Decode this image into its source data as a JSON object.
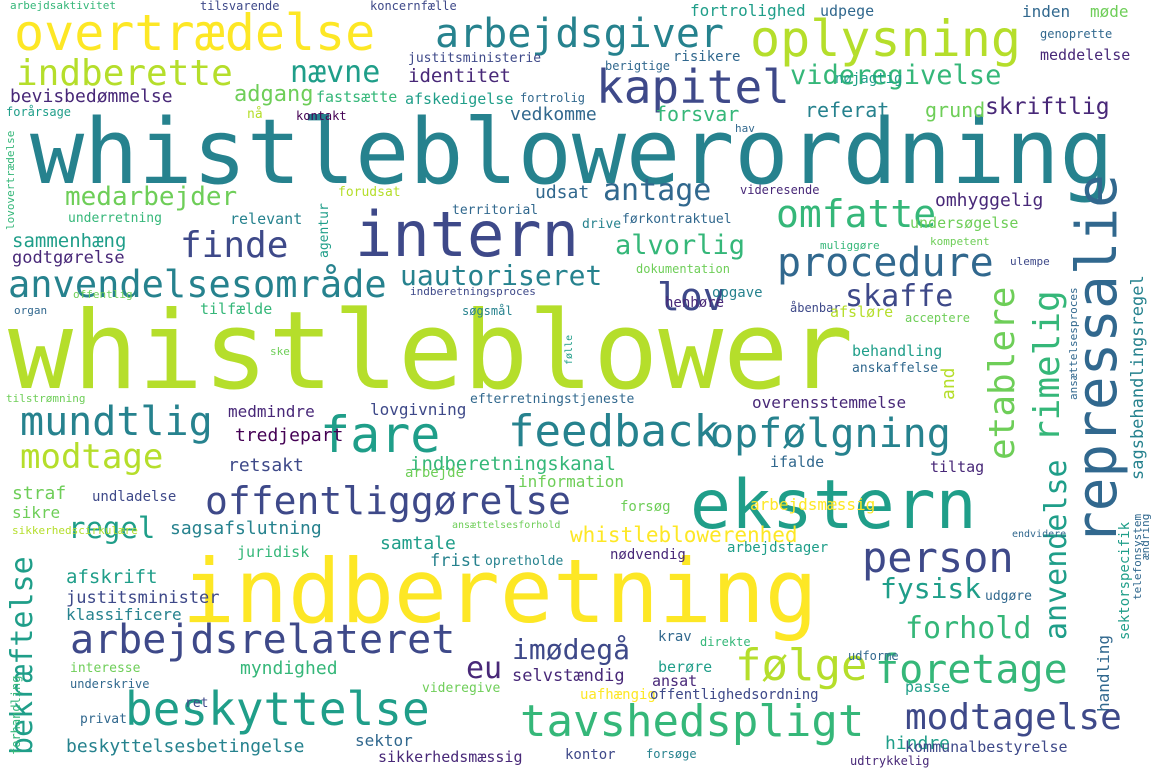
{
  "cloud": {
    "words": {
      "whistleblowerordning": "whistleblowerordning",
      "whistleblower": "whistleblower",
      "indberetning": "indberetning",
      "ekstern": "ekstern",
      "repressalie": "repressalie",
      "intern": "intern",
      "overtraedelse": "overtrædelse",
      "oplysning": "oplysning",
      "arbejdsgiver": "arbejdsgiver",
      "kapitel": "kapitel",
      "indberette": "indberette",
      "naevne": "nævne",
      "videregivelse": "videregivelse",
      "identitet": "identitet",
      "bevisbedommelse": "bevisbedømmelse",
      "adgang": "adgang",
      "fastsaette": "fastsætte",
      "afskedigelse": "afskedigelse",
      "fortrolig": "fortrolig",
      "referat": "referat",
      "grund": "grund",
      "skriftlig": "skriftlig",
      "kontakt": "kontakt",
      "vedkomme": "vedkomme",
      "forsvar": "forsvar",
      "medarbejder": "medarbejder",
      "antage": "antage",
      "omfatte": "omfatte",
      "udsat": "udsat",
      "omhyggelig": "omhyggelig",
      "finde": "finde",
      "alvorlig": "alvorlig",
      "procedure": "procedure",
      "anvendelsesomraade": "anvendelsesområde",
      "uautoriseret": "uautoriseret",
      "lov": "lov",
      "skaffe": "skaffe",
      "etablere": "etablere",
      "rimelig": "rimelig",
      "mundtlig": "mundtlig",
      "fare": "fare",
      "feedback": "feedback",
      "opfolgning": "opfølgning",
      "modtage": "modtage",
      "offentliggorelse": "offentliggørelse",
      "regel": "regel",
      "person": "person",
      "fysisk": "fysisk",
      "anvendelse": "anvendelse",
      "arbejdsrelateret": "arbejdsrelateret",
      "imodegaa": "imødegå",
      "eu": "eu",
      "folge": "følge",
      "foretage": "foretage",
      "forhold": "forhold",
      "beskyttelse": "beskyttelse",
      "tavshedspligt": "tavshedspligt",
      "modtagelse": "modtagelse",
      "bekraeftelse": "bekræftelse",
      "sagsbehandlingsregel": "sagsbehandlingsregel",
      "sammenhaeng": "sammenhæng",
      "godtgorelse": "godtgørelse",
      "medmindre": "medmindre",
      "tredjepart": "tredjepart",
      "retsakt": "retsakt",
      "lovgivning": "lovgivning",
      "indberetningskanal": "indberetningskanal",
      "overensstemmelse": "overensstemmelse",
      "tiltag": "tiltag",
      "ifalde": "ifalde",
      "information": "information",
      "straf": "straf",
      "sikre": "sikre",
      "undladelse": "undladelse",
      "sagsafslutning": "sagsafslutning",
      "samtale": "samtale",
      "whistleblowerenhed": "whistleblowerenhed",
      "arbejdsmaessig": "arbejdsmæssig",
      "arbejdstager": "arbejdstager",
      "juridisk": "juridisk",
      "frist": "frist",
      "opretholde": "opretholde",
      "noedvendig": "nødvendig",
      "afskrift": "afskrift",
      "justitsminister": "justitsminister",
      "klassificere": "klassificere",
      "myndighed": "myndighed",
      "selvstaendig": "selvstændig",
      "ansat": "ansat",
      "uafhaengig": "uafhængig",
      "offentlighedsordning": "offentlighedsordning",
      "beskyttelsesbetingelse": "beskyttelsesbetingelse",
      "sektor": "sektor",
      "sikkerhedsmaessig": "sikkerhedsmæssig",
      "kontor": "kontor",
      "hindre": "hindre",
      "kommunalbestyrelse": "kommunalbestyrelse",
      "udtrykkelig": "udtrykkelig",
      "handling": "handling",
      "sektorspecifik": "sektorspecifik",
      "behandling": "behandling",
      "anskaffelse": "anskaffelse",
      "undersogelse": "undersøgelse",
      "dokumentation": "dokumentation",
      "henhore": "henhøre",
      "opgave": "opgave",
      "aabenbar": "åbenbar",
      "afslore": "afsløre",
      "acceptere": "acceptere",
      "tilfaelde": "tilfælde",
      "sogsmaal": "søgsmål",
      "relevant": "relevant",
      "agentur": "agentur",
      "territorial": "territorial",
      "drive": "drive",
      "forkontraktuel": "førkontraktuel",
      "videresende": "videresende",
      "underretning": "underretning",
      "forudsat": "forudsat",
      "fortrolighed": "fortrolighed",
      "udpege": "udpege",
      "inden": "inden",
      "mode": "møde",
      "genoprette": "genoprette",
      "meddelelse": "meddelelse",
      "risikere": "risikere",
      "berigtige": "berigtige",
      "noejagtig": "nøjagtig",
      "justitsministerie": "justitsministerie",
      "tilsvarende": "tilsvarende",
      "koncernfaelle": "koncernfælle",
      "arbejdsaktivitet": "arbejdsaktivitet",
      "na": "nå",
      "forarsage": "forårsage",
      "hav": "hav",
      "lovovertraedelse": "lovovertrædelse",
      "indberetningsproces": "indberetningsproces",
      "offentlig": "offentlig",
      "organ": "organ",
      "ske": "ske",
      "tilstromning": "tilstrømning",
      "efterretningstjeneste": "efterretningstjeneste",
      "arbejde": "arbejde",
      "sikkerhedscirkulaere": "sikkerhedscirkulære",
      "interesse": "interesse",
      "underskrive": "underskrive",
      "forhandling": "forhandling",
      "privat": "privat",
      "ret": "ret",
      "videregive": "videregive",
      "berore": "berøre",
      "krav": "krav",
      "direkte": "direkte",
      "udforme": "udforme",
      "passe": "passe",
      "forsoege": "forsøge",
      "udgore": "udgøre",
      "telefonsystem": "telefonsystem",
      "aendring": "ændring",
      "endvidere": "endvidere",
      "forsog": "forsøg",
      "kompetent": "kompetent",
      "muliggore": "muliggøre",
      "ulempe": "ulempe",
      "ansaettelsesproces": "ansættelsesproces",
      "fuelle": "følle",
      "and": "and",
      "ansaettelsesforhold": "ansættelsesforhold"
    }
  },
  "palette": [
    "#fde725",
    "#b5de2b",
    "#6ece58",
    "#35b779",
    "#1f9e89",
    "#26828e",
    "#31688e",
    "#3e4989",
    "#482878",
    "#440154"
  ]
}
